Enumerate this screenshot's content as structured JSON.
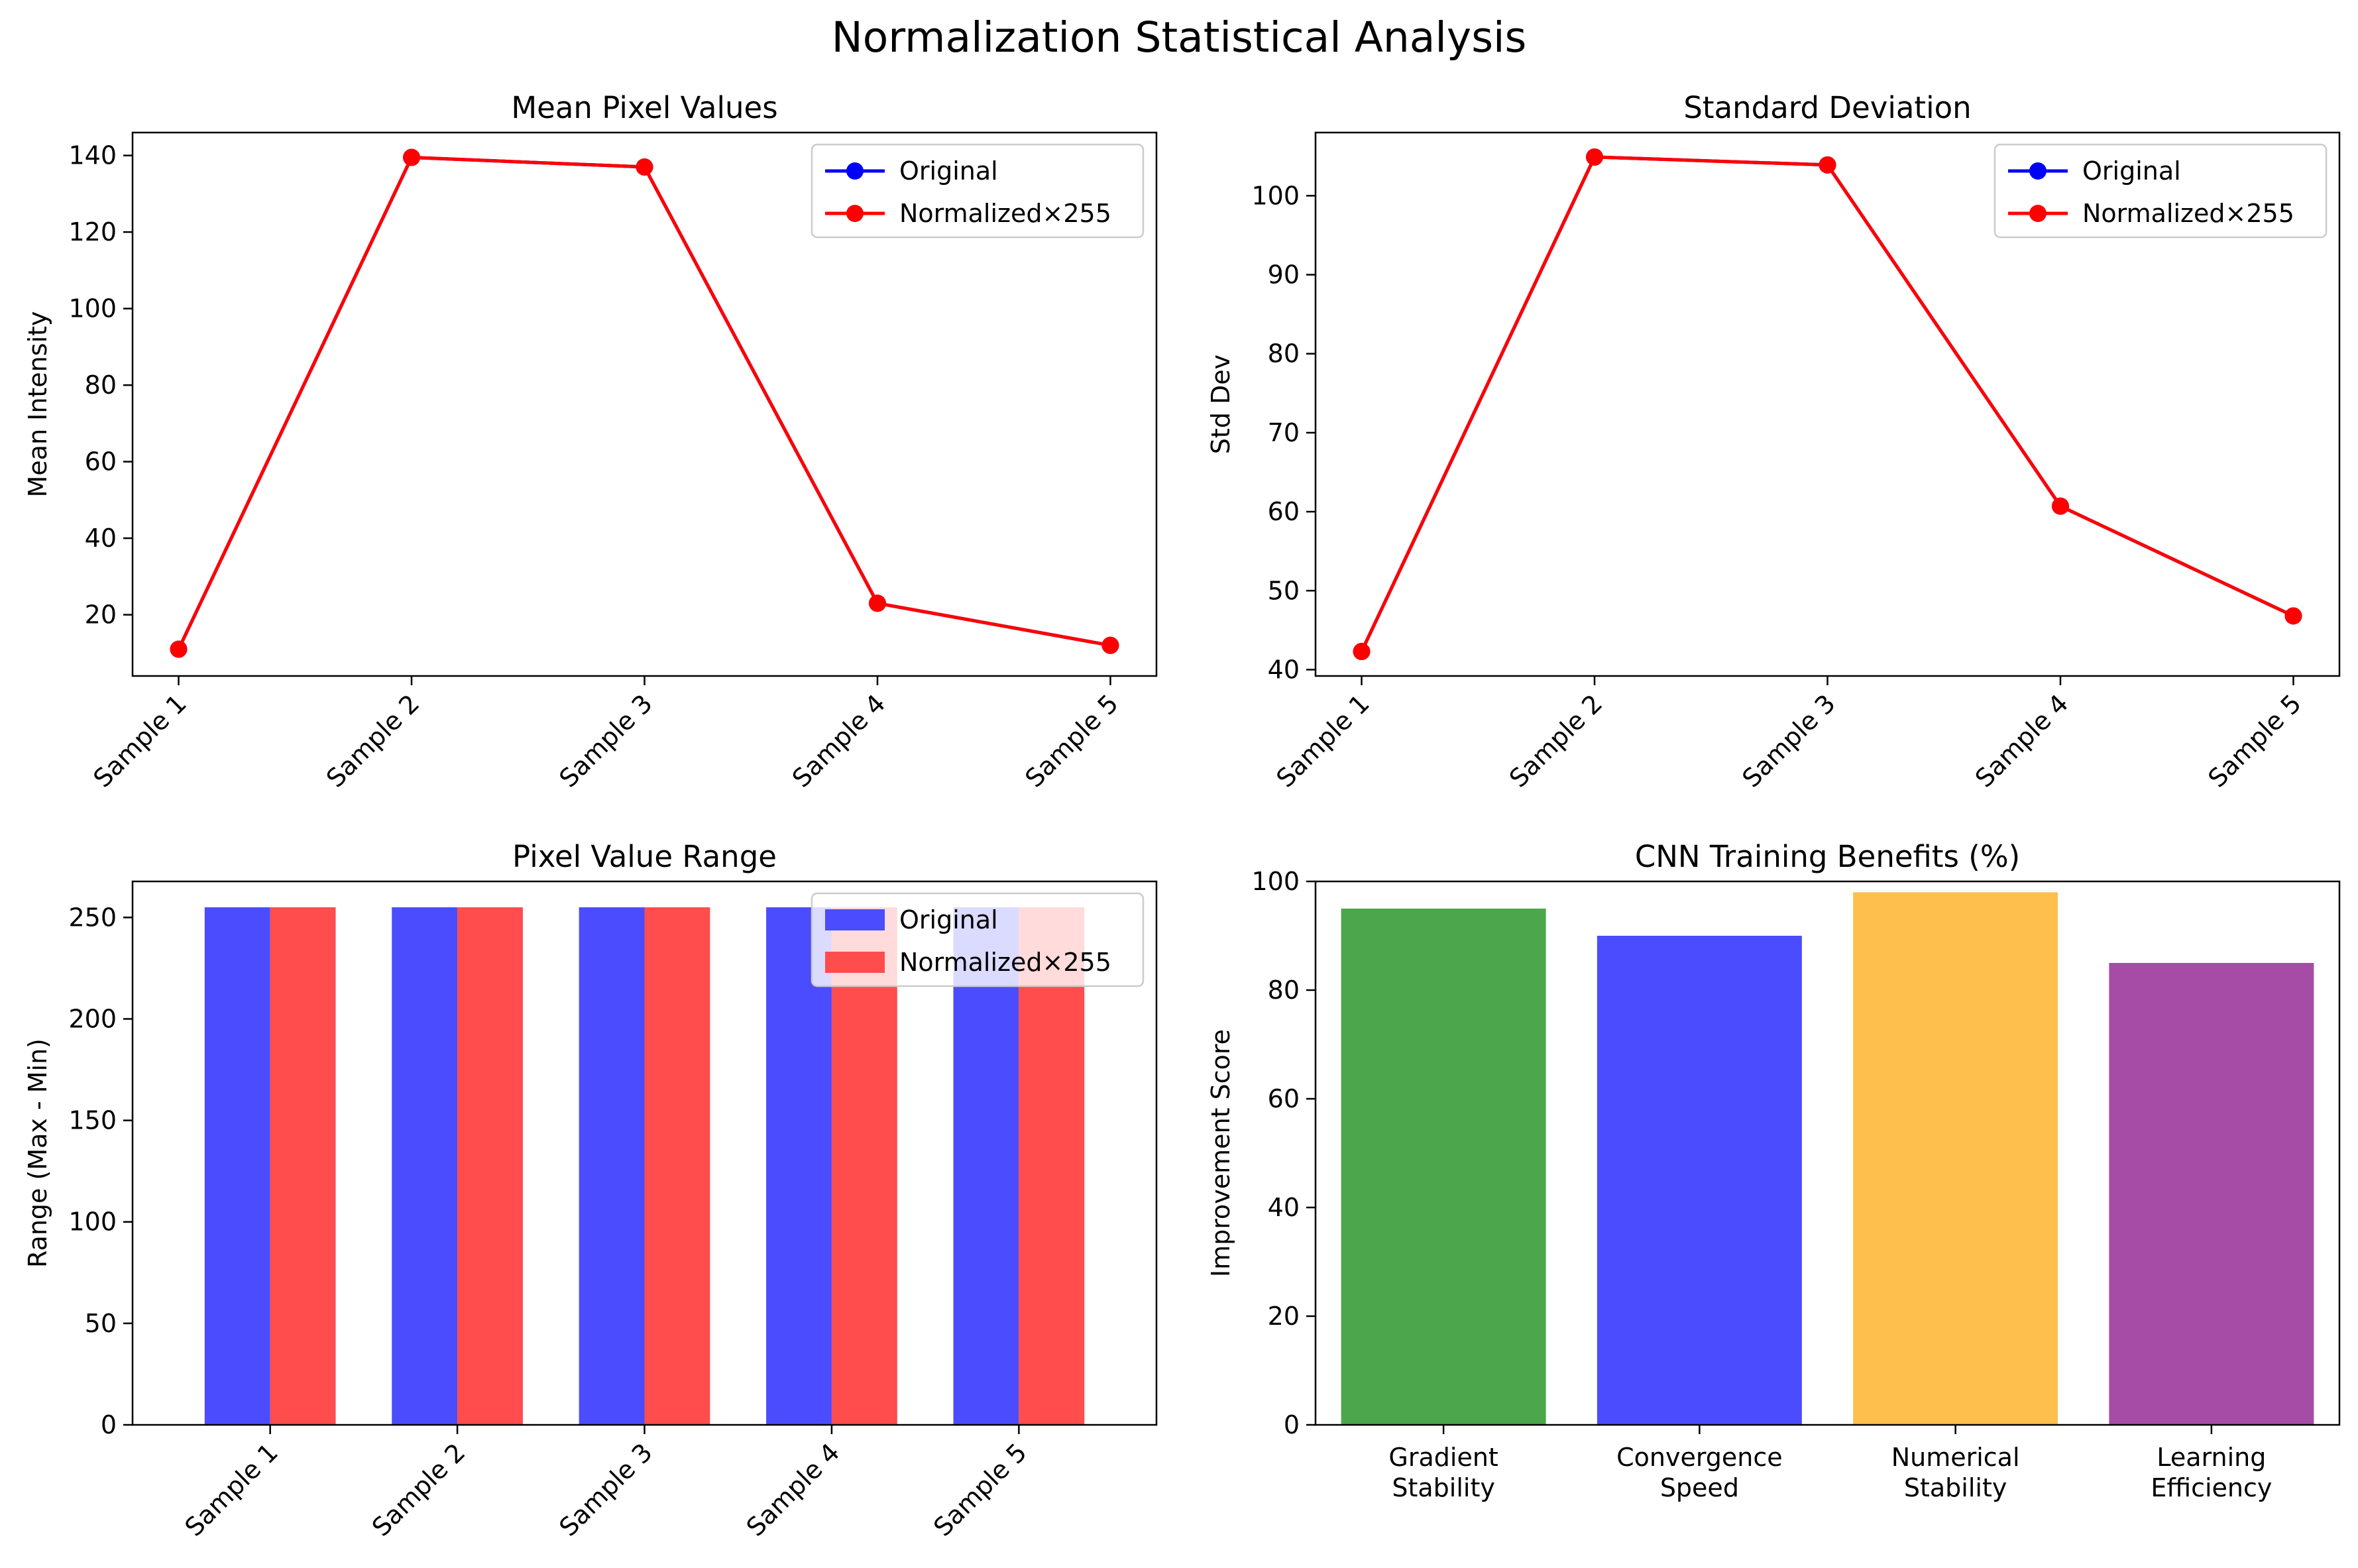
{
  "figure": {
    "title": "Normalization Statistical Analysis"
  },
  "colors": {
    "original": "#0000ff",
    "normalized": "#ff0000",
    "bar_original": "#4c4cff",
    "bar_normalized": "#ff4c4c"
  },
  "chart_data": [
    {
      "id": "mean",
      "type": "line",
      "title": "Mean Pixel Values",
      "ylabel": "Mean Intensity",
      "xlabel": "",
      "categories": [
        "Sample 1",
        "Sample 2",
        "Sample 3",
        "Sample 4",
        "Sample 5"
      ],
      "series": [
        {
          "name": "Original",
          "color": "#0000ff",
          "values": [
            11,
            139.5,
            137,
            23,
            12
          ]
        },
        {
          "name": "Normalized×255",
          "color": "#ff0000",
          "values": [
            11,
            139.5,
            137,
            23,
            12
          ]
        }
      ],
      "ylim": [
        4,
        146
      ],
      "yticks": [
        20,
        40,
        60,
        80,
        100,
        120,
        140
      ],
      "legend": "top-right",
      "grid": false
    },
    {
      "id": "std",
      "type": "line",
      "title": "Standard Deviation",
      "ylabel": "Std Dev",
      "xlabel": "",
      "categories": [
        "Sample 1",
        "Sample 2",
        "Sample 3",
        "Sample 4",
        "Sample 5"
      ],
      "series": [
        {
          "name": "Original",
          "color": "#0000ff",
          "values": [
            42.3,
            104.9,
            103.9,
            60.7,
            46.8
          ]
        },
        {
          "name": "Normalized×255",
          "color": "#ff0000",
          "values": [
            42.3,
            104.9,
            103.9,
            60.7,
            46.8
          ]
        }
      ],
      "ylim": [
        39.2,
        108
      ],
      "yticks": [
        40,
        50,
        60,
        70,
        80,
        90,
        100
      ],
      "legend": "top-right",
      "grid": false
    },
    {
      "id": "range",
      "type": "bar",
      "title": "Pixel Value Range",
      "ylabel": "Range (Max - Min)",
      "xlabel": "",
      "categories": [
        "Sample 1",
        "Sample 2",
        "Sample 3",
        "Sample 4",
        "Sample 5"
      ],
      "series": [
        {
          "name": "Original",
          "color": "#4c4cff",
          "values": [
            255,
            255,
            255,
            255,
            255
          ]
        },
        {
          "name": "Normalized×255",
          "color": "#ff4c4c",
          "values": [
            255,
            255,
            255,
            255,
            255
          ]
        }
      ],
      "ylim": [
        0,
        267.75
      ],
      "yticks": [
        0,
        50,
        100,
        150,
        200,
        250
      ],
      "legend": "top-right",
      "grid": false
    },
    {
      "id": "benefits",
      "type": "bar",
      "title": "CNN Training Benefits (%)",
      "ylabel": "Improvement Score",
      "xlabel": "",
      "categories": [
        [
          "Gradient",
          "Stability"
        ],
        [
          "Convergence",
          "Speed"
        ],
        [
          "Numerical",
          "Stability"
        ],
        [
          "Learning",
          "Efficiency"
        ]
      ],
      "values": [
        95,
        90,
        98,
        85
      ],
      "colors": [
        "#4ca64c",
        "#4c4cff",
        "#ffbf4c",
        "#a64ca6"
      ],
      "ylim": [
        0,
        100
      ],
      "yticks": [
        0,
        20,
        40,
        60,
        80,
        100
      ],
      "grid": false
    }
  ]
}
